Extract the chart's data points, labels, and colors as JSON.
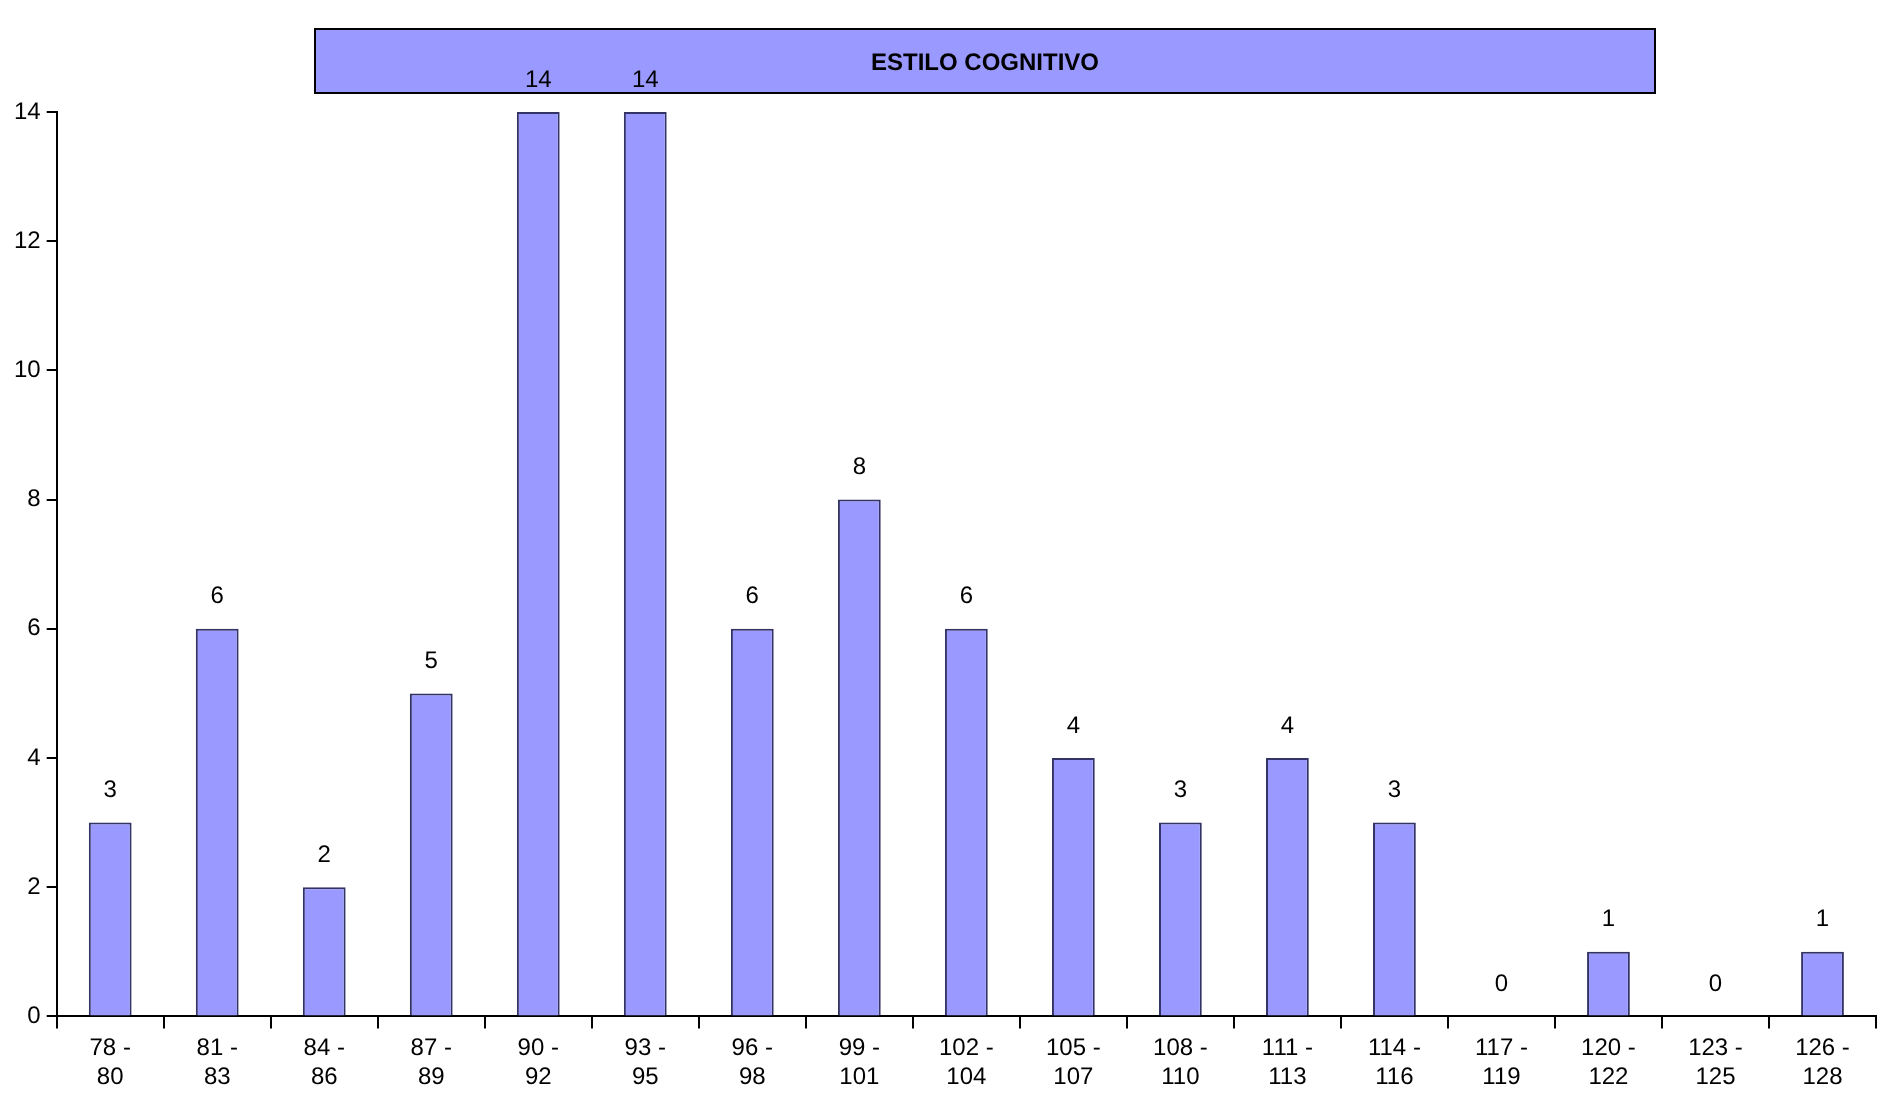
{
  "chart_data": {
    "type": "bar",
    "title": "ESTILO COGNITIVO",
    "categories": [
      "78 - 80",
      "81 - 83",
      "84 - 86",
      "87 - 89",
      "90 - 92",
      "93 - 95",
      "96 - 98",
      "99 - 101",
      "102 - 104",
      "105 - 107",
      "108 - 110",
      "111 - 113",
      "114 - 116",
      "117 - 119",
      "120 - 122",
      "123 - 125",
      "126 - 128"
    ],
    "values": [
      3,
      6,
      2,
      5,
      14,
      14,
      6,
      8,
      6,
      4,
      3,
      4,
      3,
      0,
      1,
      0,
      1
    ],
    "color": "#9999ff",
    "ylim": [
      0,
      14
    ],
    "yticks": [
      0,
      2,
      4,
      6,
      8,
      10,
      12,
      14
    ],
    "grid": false,
    "data_labels": true
  }
}
